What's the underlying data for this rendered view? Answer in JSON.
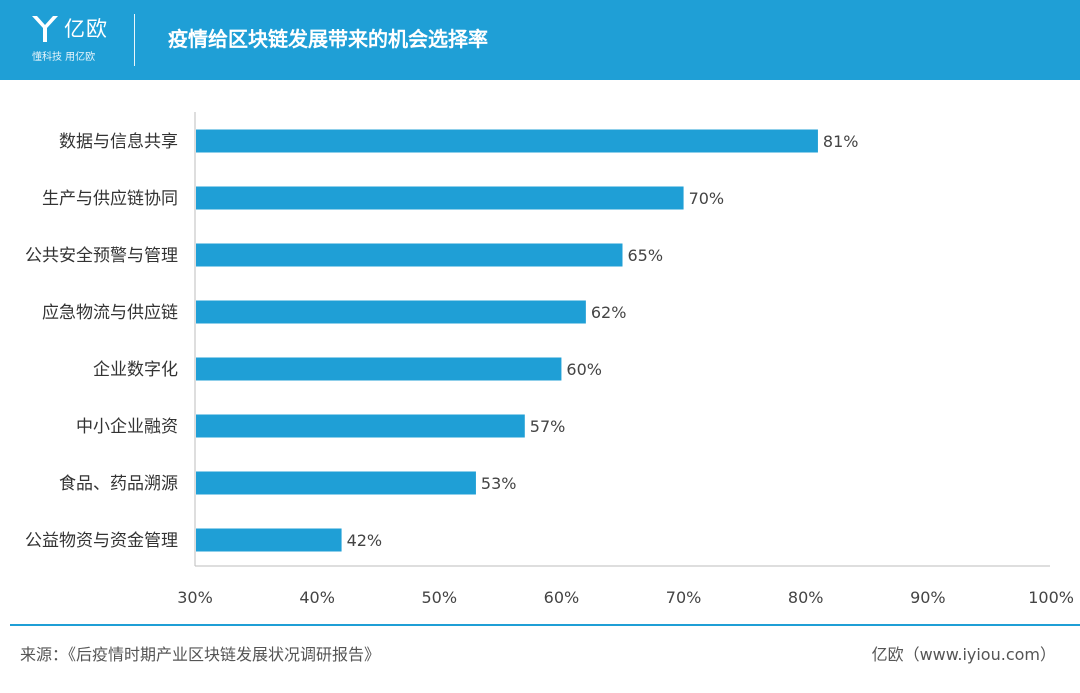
{
  "header": {
    "logo_text": "亿欧",
    "logo_slogan": "懂科技 用亿欧",
    "title": "疫情给区块链发展带来的机会选择率"
  },
  "colors": {
    "brand_blue": "#1f9fd6",
    "bar": "#1f9fd6"
  },
  "chart_data": {
    "type": "bar",
    "orientation": "horizontal",
    "categories": [
      "数据与信息共享",
      "生产与供应链协同",
      "公共安全预警与管理",
      "应急物流与供应链",
      "企业数字化",
      "中小企业融资",
      "食品、药品溯源",
      "公益物资与资金管理"
    ],
    "values": [
      81,
      70,
      65,
      62,
      60,
      57,
      53,
      42
    ],
    "value_labels": [
      "81%",
      "70%",
      "65%",
      "62%",
      "60%",
      "57%",
      "53%",
      "42%"
    ],
    "xlim": [
      30,
      100
    ],
    "xticks": [
      30,
      40,
      50,
      60,
      70,
      80,
      90,
      100
    ],
    "xtick_labels": [
      "30%",
      "40%",
      "50%",
      "60%",
      "70%",
      "80%",
      "90%",
      "100%"
    ],
    "grid": false
  },
  "footer": {
    "source": "来源：《后疫情时期产业区块链发展状况调研报告》",
    "brand": "亿欧（www.iyiou.com）"
  }
}
